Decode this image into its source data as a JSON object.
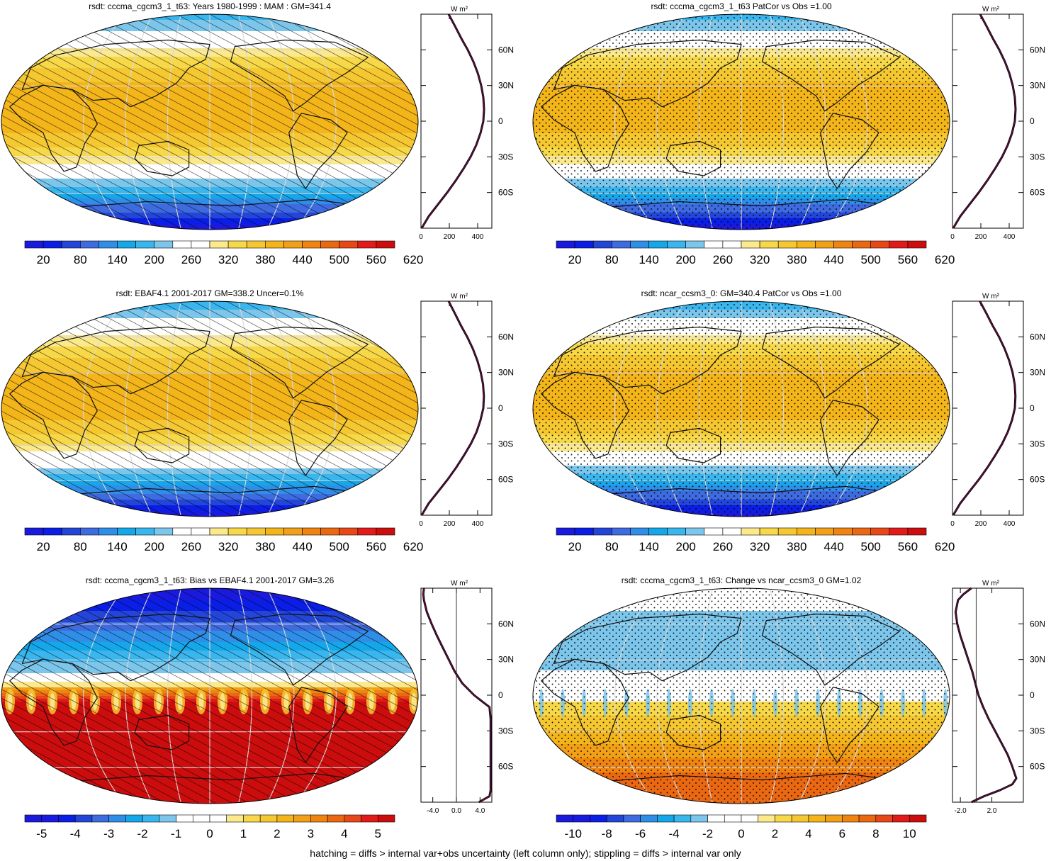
{
  "footer_note": "hatching = diffs > internal var+obs uncertainty (left column only); stippling = diffs > internal var only",
  "colors": {
    "abs_scale": [
      "#1a1adf",
      "#0a1ee6",
      "#2346d8",
      "#3f6be0",
      "#2f8ee8",
      "#14a8ea",
      "#39b6ee",
      "#7cc6ec",
      "#ffffff",
      "#ffffff",
      "#fbe98c",
      "#f7d848",
      "#f5c832",
      "#f3b519",
      "#f2a017",
      "#ef8410",
      "#eb6812",
      "#e84818",
      "#e31a1a",
      "#cc0d0d"
    ],
    "coast": "#111111",
    "grid": "#d9d9d9"
  },
  "chart_data": [
    {
      "id": "model-mam",
      "type": "heatmap",
      "title": "rsdt: cccma_cgcm3_1_t63: Years 1980-1999 : MAM : GM=341.4",
      "pattern": "hatch",
      "field": "abs",
      "colorbar": {
        "labels": [
          "20",
          "80",
          "140",
          "200",
          "260",
          "320",
          "380",
          "440",
          "500",
          "560",
          "620"
        ],
        "min": -10,
        "max": 650,
        "bins": 20
      },
      "zonal_mean": {
        "unit_label": "W m²",
        "xticks": [
          "0",
          "200",
          "400"
        ],
        "xlim": [
          0,
          500
        ],
        "lat_labels": [
          "60N",
          "30N",
          "0",
          "30S",
          "60S"
        ],
        "lat": [
          90,
          80,
          70,
          60,
          50,
          40,
          30,
          20,
          10,
          0,
          -10,
          -20,
          -30,
          -40,
          -50,
          -60,
          -70,
          -80,
          -90
        ],
        "values": [
          195,
          240,
          283,
          330,
          370,
          402,
          425,
          440,
          445,
          440,
          420,
          390,
          350,
          300,
          245,
          185,
          120,
          55,
          5
        ]
      }
    },
    {
      "id": "model-patcor",
      "type": "heatmap",
      "title": "rsdt: cccma_cgcm3_1_t63 PatCor vs Obs =1.00",
      "pattern": "stipple",
      "field": "abs",
      "colorbar": {
        "labels": [
          "20",
          "80",
          "140",
          "200",
          "260",
          "320",
          "380",
          "440",
          "500",
          "560",
          "620"
        ],
        "min": -10,
        "max": 650,
        "bins": 20
      },
      "zonal_mean": {
        "unit_label": "W m²",
        "xticks": [
          "0",
          "200",
          "400"
        ],
        "xlim": [
          0,
          500
        ],
        "lat_labels": [
          "60N",
          "30N",
          "0",
          "30S",
          "60S"
        ],
        "lat": [
          90,
          80,
          70,
          60,
          50,
          40,
          30,
          20,
          10,
          0,
          -10,
          -20,
          -30,
          -40,
          -50,
          -60,
          -70,
          -80,
          -90
        ],
        "values": [
          195,
          240,
          283,
          330,
          370,
          402,
          425,
          440,
          445,
          440,
          420,
          390,
          350,
          300,
          245,
          185,
          120,
          55,
          5
        ]
      }
    },
    {
      "id": "obs-ebaf",
      "type": "heatmap",
      "title": "rsdt: EBAF4.1 2001-2017 GM=338.2 Uncer=0.1%",
      "pattern": "hatch",
      "field": "abs",
      "colorbar": {
        "labels": [
          "20",
          "80",
          "140",
          "200",
          "260",
          "320",
          "380",
          "440",
          "500",
          "560",
          "620"
        ],
        "min": -10,
        "max": 650,
        "bins": 20
      },
      "zonal_mean": {
        "unit_label": "W m²",
        "xticks": [
          "0",
          "200",
          "400"
        ],
        "xlim": [
          0,
          500
        ],
        "lat_labels": [
          "60N",
          "30N",
          "0",
          "30S",
          "60S"
        ],
        "lat": [
          90,
          80,
          70,
          60,
          50,
          40,
          30,
          20,
          10,
          0,
          -10,
          -20,
          -30,
          -40,
          -50,
          -60,
          -70,
          -80,
          -90
        ],
        "values": [
          195,
          238,
          280,
          326,
          366,
          398,
          422,
          438,
          444,
          440,
          420,
          392,
          352,
          302,
          248,
          188,
          122,
          55,
          5
        ]
      }
    },
    {
      "id": "ncar",
      "type": "heatmap",
      "title": "rsdt: ncar_ccsm3_0: GM=340.4 PatCor vs Obs =1.00",
      "pattern": "stipple",
      "field": "abs",
      "colorbar": {
        "labels": [
          "20",
          "80",
          "140",
          "200",
          "260",
          "320",
          "380",
          "440",
          "500",
          "560",
          "620"
        ],
        "min": -10,
        "max": 650,
        "bins": 20
      },
      "zonal_mean": {
        "unit_label": "W m²",
        "xticks": [
          "0",
          "200",
          "400"
        ],
        "xlim": [
          0,
          500
        ],
        "lat_labels": [
          "60N",
          "30N",
          "0",
          "30S",
          "60S"
        ],
        "lat": [
          90,
          80,
          70,
          60,
          50,
          40,
          30,
          20,
          10,
          0,
          -10,
          -20,
          -30,
          -40,
          -50,
          -60,
          -70,
          -80,
          -90
        ],
        "values": [
          193,
          238,
          281,
          328,
          368,
          400,
          424,
          439,
          444,
          440,
          420,
          390,
          350,
          300,
          246,
          186,
          120,
          55,
          5
        ]
      }
    },
    {
      "id": "bias",
      "type": "heatmap",
      "title": "rsdt: cccma_cgcm3_1_t63: Bias vs EBAF4.1 2001-2017 GM=3.26",
      "pattern": "hatch",
      "field": "bias",
      "colorbar": {
        "labels": [
          "-5",
          "-4",
          "-3",
          "-2",
          "-1",
          "0",
          "1",
          "2",
          "3",
          "4",
          "5"
        ],
        "min": -5.5,
        "max": 5.5,
        "bins": 22
      },
      "zonal_mean": {
        "unit_label": "W m²",
        "xticks": [
          "-4.0",
          "0.0",
          "4.0"
        ],
        "xlim": [
          -6,
          6
        ],
        "lat_labels": [
          "60N",
          "30N",
          "0",
          "30S",
          "60S"
        ],
        "lat": [
          90,
          85,
          80,
          70,
          60,
          50,
          40,
          30,
          20,
          10,
          0,
          -5,
          -10,
          -20,
          -30,
          -40,
          -50,
          -60,
          -70,
          -80,
          -85,
          -90
        ],
        "values": [
          -5.5,
          -5.6,
          -5.5,
          -5.0,
          -4.2,
          -3.3,
          -2.3,
          -1.3,
          -0.3,
          1.0,
          3.0,
          4.3,
          5.6,
          5.8,
          5.8,
          5.8,
          5.8,
          5.8,
          5.8,
          5.8,
          5.6,
          3.8
        ]
      }
    },
    {
      "id": "change",
      "type": "heatmap",
      "title": "rsdt: cccma_cgcm3_1_t63: Change vs ncar_ccsm3_0 GM=1.02",
      "pattern": "stipple",
      "field": "change",
      "colorbar": {
        "labels": [
          "-10",
          "-8",
          "-6",
          "-4",
          "-2",
          "0",
          "2",
          "4",
          "6",
          "8",
          "10"
        ],
        "min": -11,
        "max": 11,
        "bins": 22
      },
      "zonal_mean": {
        "unit_label": "W m²",
        "xticks": [
          "-2.0",
          "2.0"
        ],
        "xlim": [
          -3,
          6
        ],
        "lat_labels": [
          "60N",
          "30N",
          "0",
          "30S",
          "60S"
        ],
        "lat": [
          90,
          85,
          80,
          70,
          60,
          50,
          40,
          30,
          20,
          10,
          0,
          -10,
          -20,
          -30,
          -40,
          -50,
          -60,
          -70,
          -75,
          -80,
          -85,
          -90
        ],
        "values": [
          -0.6,
          -1.6,
          -2.3,
          -2.6,
          -2.4,
          -2.0,
          -1.5,
          -1.0,
          -0.5,
          -0.1,
          0.3,
          0.9,
          1.6,
          2.4,
          3.2,
          4.0,
          4.6,
          5.1,
          4.6,
          3.0,
          1.0,
          -0.6
        ]
      }
    }
  ]
}
